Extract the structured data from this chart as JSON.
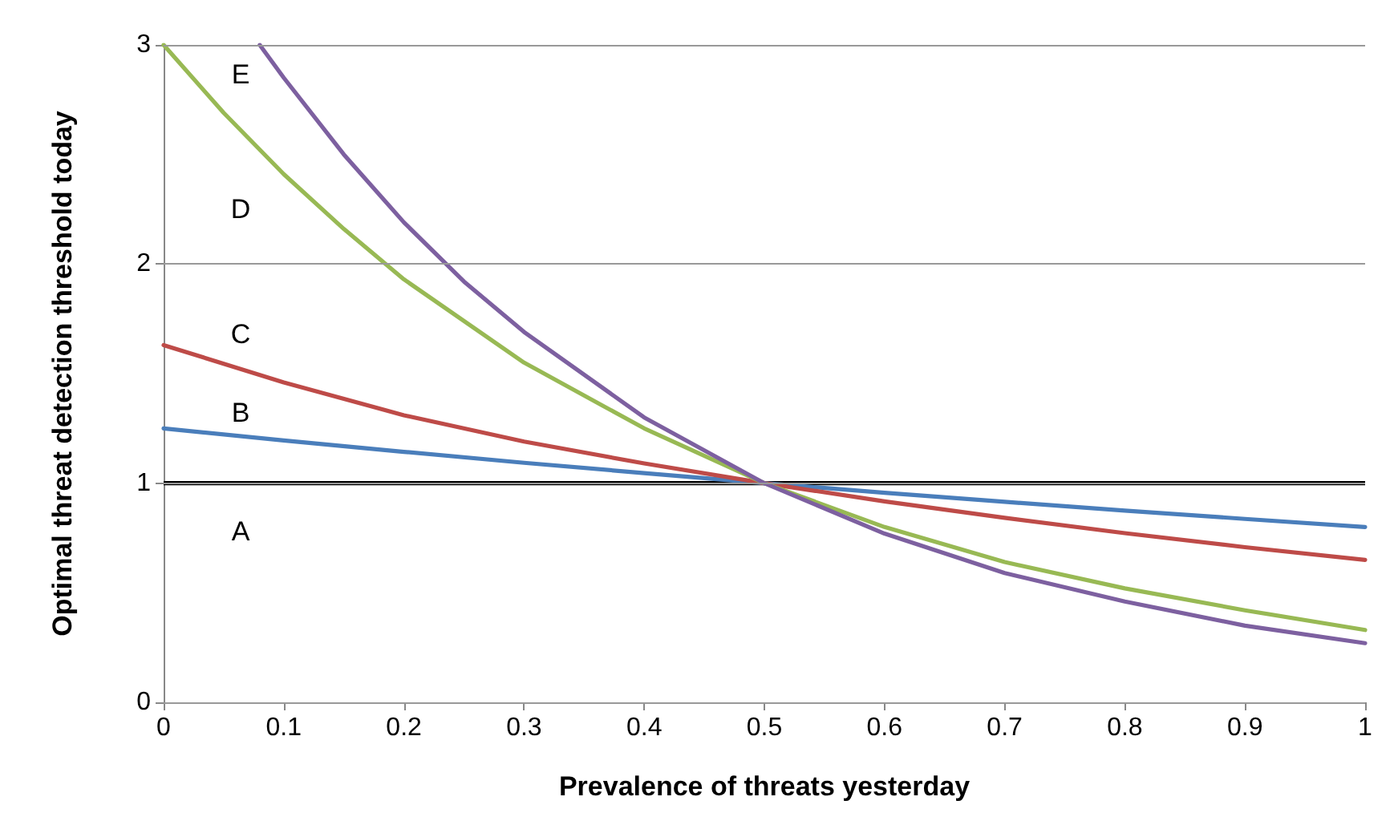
{
  "chart_data": {
    "type": "line",
    "xlabel": "Prevalence of threats yesterday",
    "ylabel": "Optimal threat detection threshold today",
    "xlim": [
      0,
      1
    ],
    "xticks": [
      0,
      0.1,
      0.2,
      0.3,
      0.4,
      0.5,
      0.6,
      0.7,
      0.8,
      0.9,
      1
    ],
    "ylim": [
      0,
      3
    ],
    "yticks": [
      0,
      1,
      2,
      3
    ],
    "grid": "y",
    "marker": "none",
    "line_style": "solid",
    "ref_lines": [
      {
        "axis": "y",
        "value": 1,
        "color": "#000000"
      }
    ],
    "series": [
      {
        "color": "#4a7ebb",
        "x": [
          0,
          0.1,
          0.2,
          0.3,
          0.4,
          0.5,
          0.6,
          0.7,
          0.8,
          0.9,
          1
        ],
        "values": [
          1.25,
          1.195,
          1.143,
          1.093,
          1.046,
          1,
          0.956,
          0.915,
          0.875,
          0.837,
          0.8
        ]
      },
      {
        "color": "#be4b48",
        "x": [
          0,
          0.1,
          0.2,
          0.3,
          0.4,
          0.5,
          0.6,
          0.7,
          0.8,
          0.9,
          1
        ],
        "values": [
          1.63,
          1.46,
          1.31,
          1.19,
          1.09,
          1,
          0.917,
          0.842,
          0.772,
          0.708,
          0.65
        ]
      },
      {
        "color": "#98b954",
        "x": [
          0,
          0.05,
          0.1,
          0.15,
          0.2,
          0.3,
          0.4,
          0.5,
          0.6,
          0.7,
          0.8,
          0.9,
          1
        ],
        "values": [
          3,
          2.69,
          2.41,
          2.16,
          1.93,
          1.55,
          1.25,
          1,
          0.8,
          0.64,
          0.52,
          0.42,
          0.33
        ]
      },
      {
        "color": "#7d60a0",
        "x": [
          0.08,
          0.1,
          0.15,
          0.2,
          0.25,
          0.3,
          0.4,
          0.5,
          0.6,
          0.7,
          0.8,
          0.9,
          1
        ],
        "values": [
          3,
          2.85,
          2.5,
          2.19,
          1.92,
          1.69,
          1.3,
          1,
          0.77,
          0.59,
          0.46,
          0.35,
          0.27
        ]
      }
    ],
    "annotations": [
      "A",
      "B",
      "C",
      "D",
      "E"
    ]
  }
}
